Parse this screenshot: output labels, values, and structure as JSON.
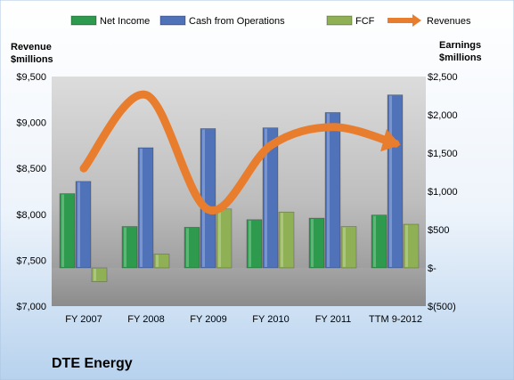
{
  "chart_data": {
    "type": "bar",
    "title": "DTE Energy",
    "categories": [
      "FY 2007",
      "FY 2008",
      "FY 2009",
      "FY 2010",
      "FY 2011",
      "TTM 9-2012"
    ],
    "left_axis": {
      "label_line1": "Revenue",
      "label_line2": "$millions",
      "range": [
        7000,
        9500
      ],
      "ticks": [
        7000,
        7500,
        8000,
        8500,
        9000,
        9500
      ],
      "tick_labels": [
        "$7,000",
        "$7,500",
        "$8,000",
        "$8,500",
        "$9,000",
        "$9,500"
      ]
    },
    "right_axis": {
      "label_line1": "Earnings",
      "label_line2": "$millions",
      "range": [
        -500,
        2500
      ],
      "ticks": [
        -500,
        0,
        500,
        1000,
        1500,
        2000,
        2500
      ],
      "tick_labels": [
        "$(500)",
        "$-",
        "$500",
        "$1,000",
        "$1,500",
        "$2,000",
        "$2,500"
      ]
    },
    "series": [
      {
        "name": "Net Income",
        "kind": "bar",
        "axis": "right",
        "color": "#2e9a4e",
        "values": [
          970,
          540,
          530,
          630,
          650,
          690
        ]
      },
      {
        "name": "Cash from Operations",
        "kind": "bar",
        "axis": "right",
        "color": "#4f72b8",
        "values": [
          1130,
          1570,
          1820,
          1830,
          2030,
          2260
        ]
      },
      {
        "name": "FCF",
        "kind": "bar",
        "axis": "right",
        "color": "#8fb055",
        "values": [
          -180,
          180,
          770,
          730,
          540,
          570
        ]
      },
      {
        "name": "Revenues",
        "kind": "line",
        "axis": "left",
        "color": "#e87d2e",
        "values": [
          8500,
          9300,
          8050,
          8750,
          8950,
          8770
        ]
      }
    ],
    "legend_position": "top",
    "grid": false
  }
}
